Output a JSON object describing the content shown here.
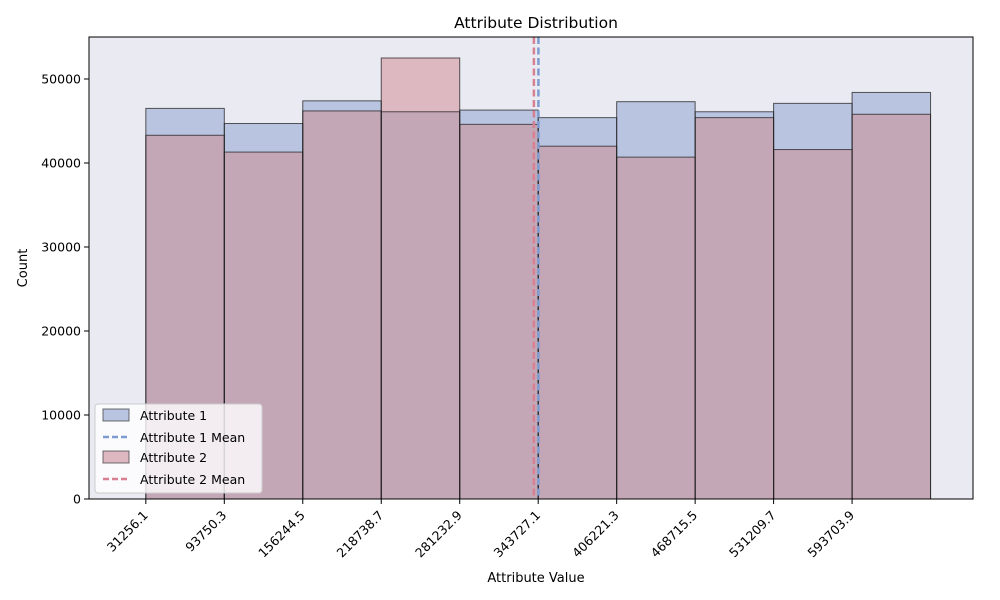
{
  "chart_data": {
    "type": "bar",
    "title": "Attribute Distribution",
    "xlabel": "Attribute Value",
    "ylabel": "Count",
    "categories": [
      "31256.1",
      "93750.3",
      "156244.5",
      "218738.7",
      "281232.9",
      "343727.1",
      "406221.3",
      "468715.5",
      "531209.7",
      "593703.9"
    ],
    "bin_edges": [
      31256.1,
      93750.3,
      156244.5,
      218738.7,
      281232.9,
      343727.1,
      406221.3,
      468715.5,
      531209.7,
      593703.9,
      656198.1
    ],
    "xlim": [
      -14000,
      690000
    ],
    "ylim": [
      0,
      55000
    ],
    "yticks": [
      0,
      10000,
      20000,
      30000,
      40000,
      50000
    ],
    "series": [
      {
        "name": "Attribute 1",
        "values": [
          46500,
          44700,
          47400,
          46100,
          46300,
          45400,
          47300,
          46100,
          47100,
          48400
        ],
        "fill": "#b8c4e0",
        "mean": 343900,
        "mean_label": "Attribute 1 Mean",
        "mean_color": "#7d9bd1"
      },
      {
        "name": "Attribute 2",
        "values": [
          43300,
          41300,
          46200,
          52500,
          44600,
          42000,
          40700,
          45400,
          41600,
          45800
        ],
        "fill": "#deb8c1",
        "mean": 340300,
        "mean_label": "Attribute 2 Mean",
        "mean_color": "#d88092"
      }
    ],
    "overlap_fill": "#c4a7b7",
    "background": "#eaeaf2",
    "grid": false,
    "legend_position": "lower-left"
  }
}
